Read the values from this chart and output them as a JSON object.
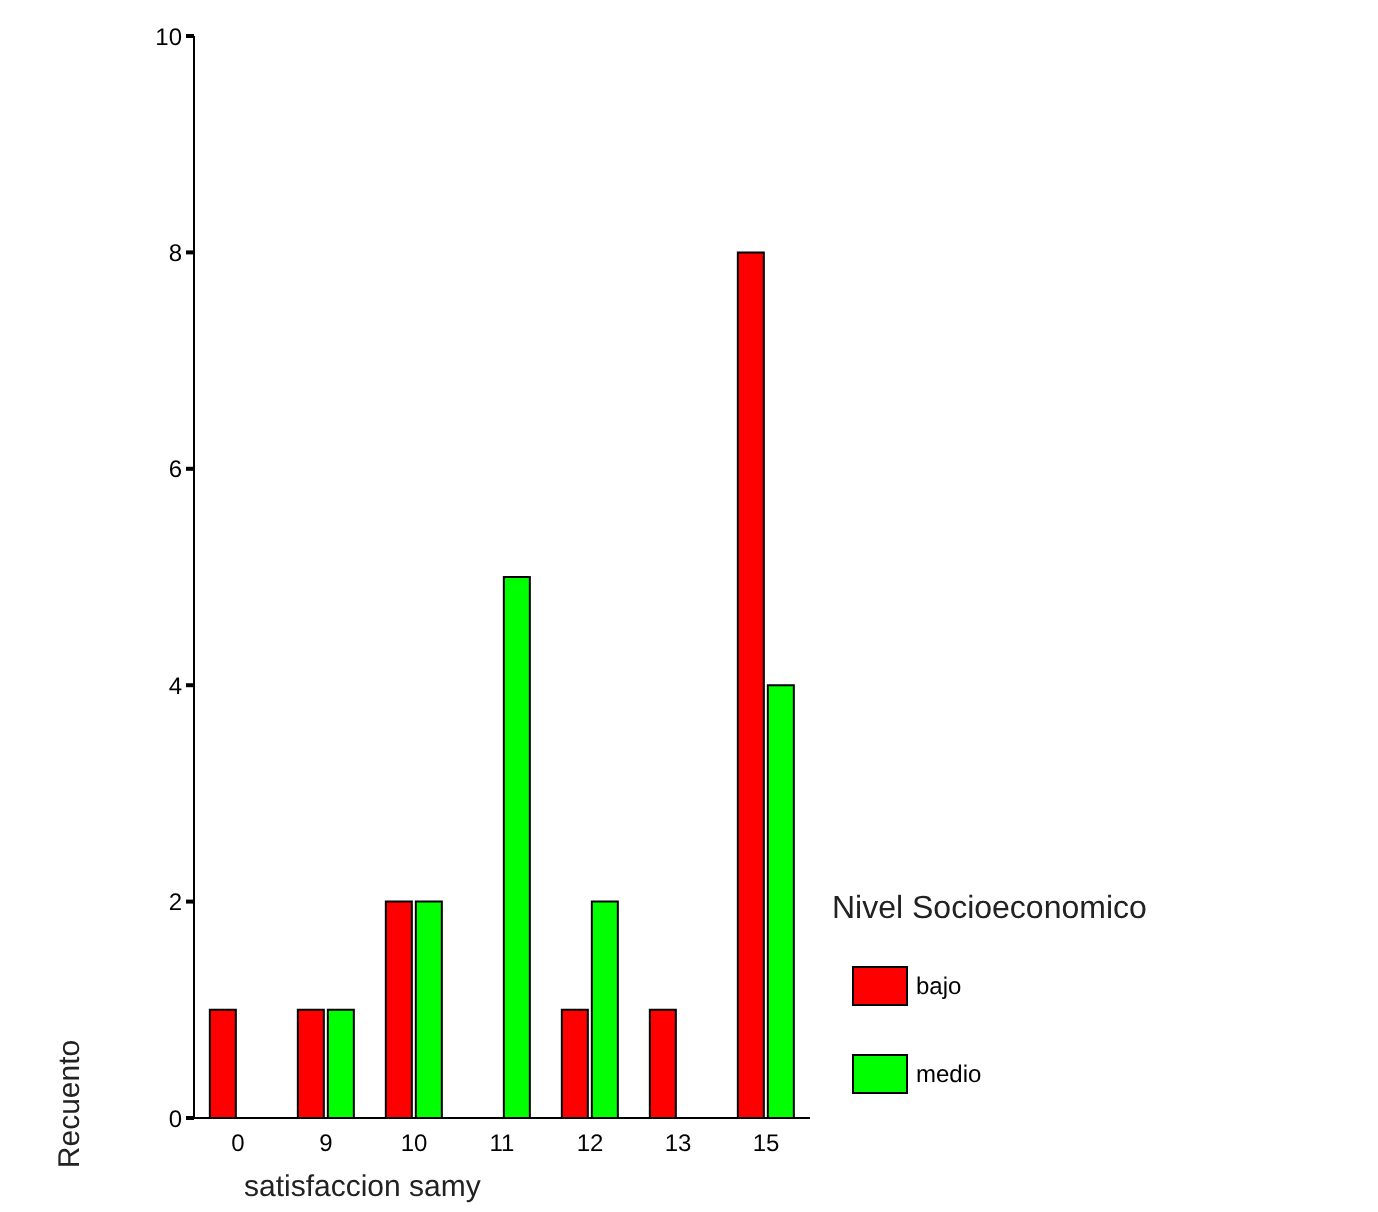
{
  "chart_data": {
    "type": "bar",
    "xlabel": "satisfaccion samy",
    "ylabel": "Recuento",
    "legend_title": "Nivel Socioeconomico",
    "categories": [
      "0",
      "9",
      "10",
      "11",
      "12",
      "13",
      "15"
    ],
    "series": [
      {
        "name": "bajo",
        "color": "#ff0000",
        "values": [
          1,
          1,
          2,
          0,
          1,
          1,
          8
        ]
      },
      {
        "name": "medio",
        "color": "#00ff00",
        "values": [
          0,
          1,
          2,
          5,
          2,
          0,
          4
        ]
      }
    ],
    "ylim": [
      0,
      10
    ],
    "yticks": [
      0,
      2,
      4,
      6,
      8,
      10
    ],
    "legend": "right"
  }
}
